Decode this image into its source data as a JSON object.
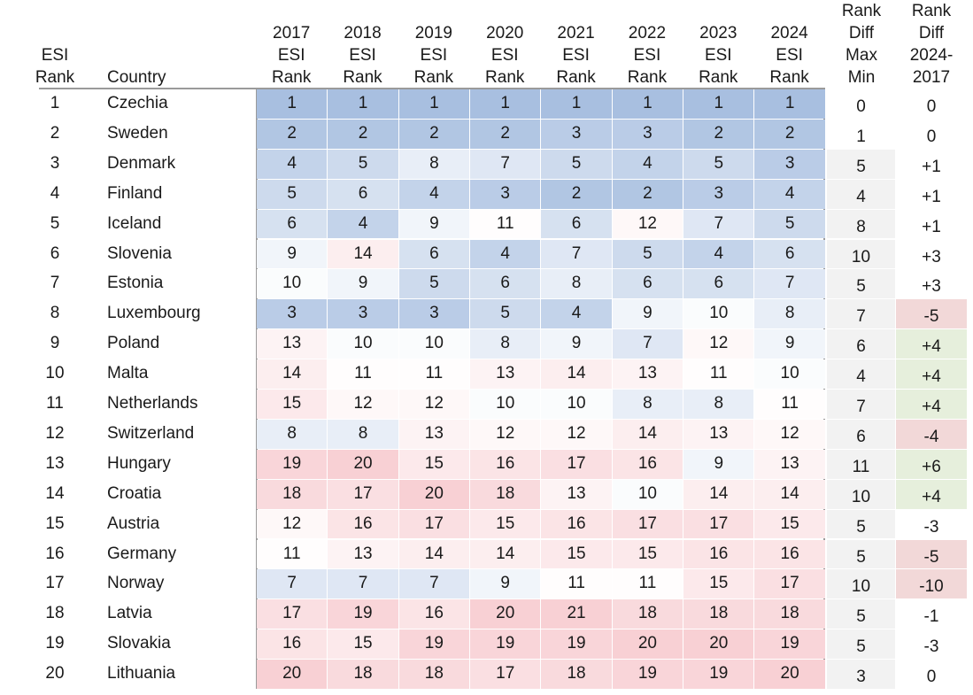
{
  "chart_data": {
    "type": "table",
    "headers": {
      "esi_rank": "ESI\nRank",
      "country": "Country",
      "years": [
        "2017\nESI\nRank",
        "2018\nESI\nRank",
        "2019\nESI\nRank",
        "2020\nESI\nRank",
        "2021\nESI\nRank",
        "2022\nESI\nRank",
        "2023\nESI\nRank",
        "2024\nESI\nRank"
      ],
      "max_min": "Rank\nDiff\nMax\nMin",
      "diff": "Rank\nDiff\n2024-\n2017"
    },
    "rows": [
      {
        "rank": "1",
        "country": "Czechia",
        "ranks": [
          1,
          1,
          1,
          1,
          1,
          1,
          1,
          1
        ],
        "maxmin": "0",
        "diff": "0"
      },
      {
        "rank": "2",
        "country": "Sweden",
        "ranks": [
          2,
          2,
          2,
          2,
          3,
          3,
          2,
          2
        ],
        "maxmin": "1",
        "diff": "0"
      },
      {
        "rank": "3",
        "country": "Denmark",
        "ranks": [
          4,
          5,
          8,
          7,
          5,
          4,
          5,
          3
        ],
        "maxmin": "5",
        "diff": "+1"
      },
      {
        "rank": "4",
        "country": "Finland",
        "ranks": [
          5,
          6,
          4,
          3,
          2,
          2,
          3,
          4
        ],
        "maxmin": "4",
        "diff": "+1"
      },
      {
        "rank": "5",
        "country": "Iceland",
        "ranks": [
          6,
          4,
          9,
          11,
          6,
          12,
          7,
          5
        ],
        "maxmin": "8",
        "diff": "+1"
      },
      {
        "rank": "6",
        "country": "Slovenia",
        "ranks": [
          9,
          14,
          6,
          4,
          7,
          5,
          4,
          6
        ],
        "maxmin": "10",
        "diff": "+3"
      },
      {
        "rank": "7",
        "country": "Estonia",
        "ranks": [
          10,
          9,
          5,
          6,
          8,
          6,
          6,
          7
        ],
        "maxmin": "5",
        "diff": "+3"
      },
      {
        "rank": "8",
        "country": "Luxembourg",
        "ranks": [
          3,
          3,
          3,
          5,
          4,
          9,
          10,
          8
        ],
        "maxmin": "7",
        "diff": "-5"
      },
      {
        "rank": "9",
        "country": "Poland",
        "ranks": [
          13,
          10,
          10,
          8,
          9,
          7,
          12,
          9
        ],
        "maxmin": "6",
        "diff": "+4"
      },
      {
        "rank": "10",
        "country": "Malta",
        "ranks": [
          14,
          11,
          11,
          13,
          14,
          13,
          11,
          10
        ],
        "maxmin": "4",
        "diff": "+4"
      },
      {
        "rank": "11",
        "country": "Netherlands",
        "ranks": [
          15,
          12,
          12,
          10,
          10,
          8,
          8,
          11
        ],
        "maxmin": "7",
        "diff": "+4"
      },
      {
        "rank": "12",
        "country": "Switzerland",
        "ranks": [
          8,
          8,
          13,
          12,
          12,
          14,
          13,
          12
        ],
        "maxmin": "6",
        "diff": "-4"
      },
      {
        "rank": "13",
        "country": "Hungary",
        "ranks": [
          19,
          20,
          15,
          16,
          17,
          16,
          9,
          13
        ],
        "maxmin": "11",
        "diff": "+6"
      },
      {
        "rank": "14",
        "country": "Croatia",
        "ranks": [
          18,
          17,
          20,
          18,
          13,
          10,
          14,
          14
        ],
        "maxmin": "10",
        "diff": "+4"
      },
      {
        "rank": "15",
        "country": "Austria",
        "ranks": [
          12,
          16,
          17,
          15,
          16,
          17,
          17,
          15
        ],
        "maxmin": "5",
        "diff": "-3"
      },
      {
        "rank": "16",
        "country": "Germany",
        "ranks": [
          11,
          13,
          14,
          14,
          15,
          15,
          16,
          16
        ],
        "maxmin": "5",
        "diff": "-5"
      },
      {
        "rank": "17",
        "country": "Norway",
        "ranks": [
          7,
          7,
          7,
          9,
          11,
          11,
          15,
          17
        ],
        "maxmin": "10",
        "diff": "-10"
      },
      {
        "rank": "18",
        "country": "Latvia",
        "ranks": [
          17,
          19,
          16,
          20,
          21,
          18,
          18,
          18
        ],
        "maxmin": "5",
        "diff": "-1"
      },
      {
        "rank": "19",
        "country": "Slovakia",
        "ranks": [
          16,
          15,
          19,
          19,
          19,
          20,
          20,
          19
        ],
        "maxmin": "5",
        "diff": "-3"
      },
      {
        "rank": "20",
        "country": "Lithuania",
        "ranks": [
          20,
          18,
          18,
          17,
          18,
          19,
          19,
          20
        ],
        "maxmin": "3",
        "diff": "0"
      }
    ],
    "colors": {
      "best_rank": "#a8bfe0",
      "mid_rank": "#ffffff",
      "worst_rank": "#f8d0d4",
      "maxmin_shade": "#f2f2f2",
      "diff_positive": "#e6efdc",
      "diff_negative": "#f2d8d8"
    }
  }
}
